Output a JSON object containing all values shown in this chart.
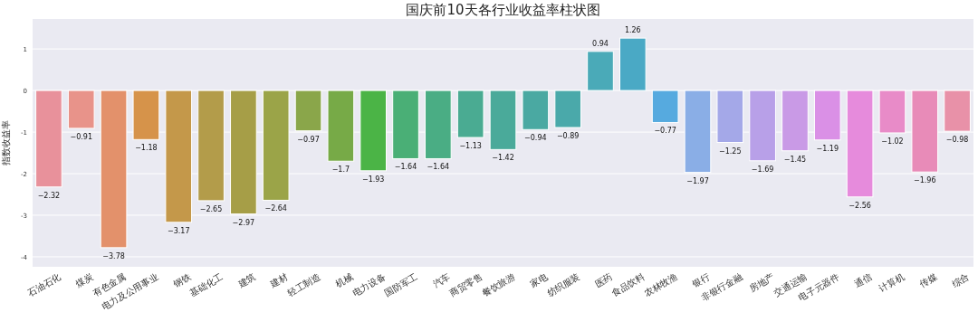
{
  "chart_data": {
    "type": "bar",
    "title": "国庆前10天各行业收益率柱状图",
    "ylabel": "指数收益率",
    "categories": [
      "石油石化",
      "煤炭",
      "有色金属",
      "电力及公用事业",
      "钢铁",
      "基础化工",
      "建筑",
      "建材",
      "轻工制造",
      "机械",
      "电力设备",
      "国防军工",
      "汽车",
      "商贸零售",
      "餐饮旅游",
      "家电",
      "纺织服装",
      "医药",
      "食品饮料",
      "农林牧渔",
      "银行",
      "非银行金融",
      "房地产",
      "交通运输",
      "电子元器件",
      "通信",
      "计算机",
      "传媒",
      "综合"
    ],
    "values": [
      -2.32,
      -0.91,
      -3.78,
      -1.18,
      -3.17,
      -2.65,
      -2.97,
      -2.64,
      -0.97,
      -1.7,
      -1.93,
      -1.64,
      -1.64,
      -1.13,
      -1.42,
      -0.94,
      -0.89,
      0.94,
      1.26,
      -0.77,
      -1.97,
      -1.25,
      -1.69,
      -1.45,
      -1.19,
      -2.56,
      -1.02,
      -1.96,
      -0.98
    ],
    "colors": [
      "#e8919b",
      "#e8938a",
      "#e3916b",
      "#d6934a",
      "#c4984a",
      "#b39c4a",
      "#a69e47",
      "#9ba448",
      "#8aa64a",
      "#77aa47",
      "#4bb446",
      "#4aaf76",
      "#4aad84",
      "#4aab92",
      "#4aaa9a",
      "#4aa9a2",
      "#4aa9aa",
      "#4aaab8",
      "#4aa9c5",
      "#56aadf",
      "#8aaee6",
      "#a4a8e8",
      "#b8a0e8",
      "#c99ae6",
      "#da90e6",
      "#e68bdc",
      "#e88bc8",
      "#e88bb8",
      "#e891a8"
    ],
    "ylim": [
      -4.24,
      1.72
    ],
    "yticks": [
      -4,
      -3,
      -2,
      -1,
      0,
      1
    ],
    "grid": "y",
    "data_labels": true
  }
}
